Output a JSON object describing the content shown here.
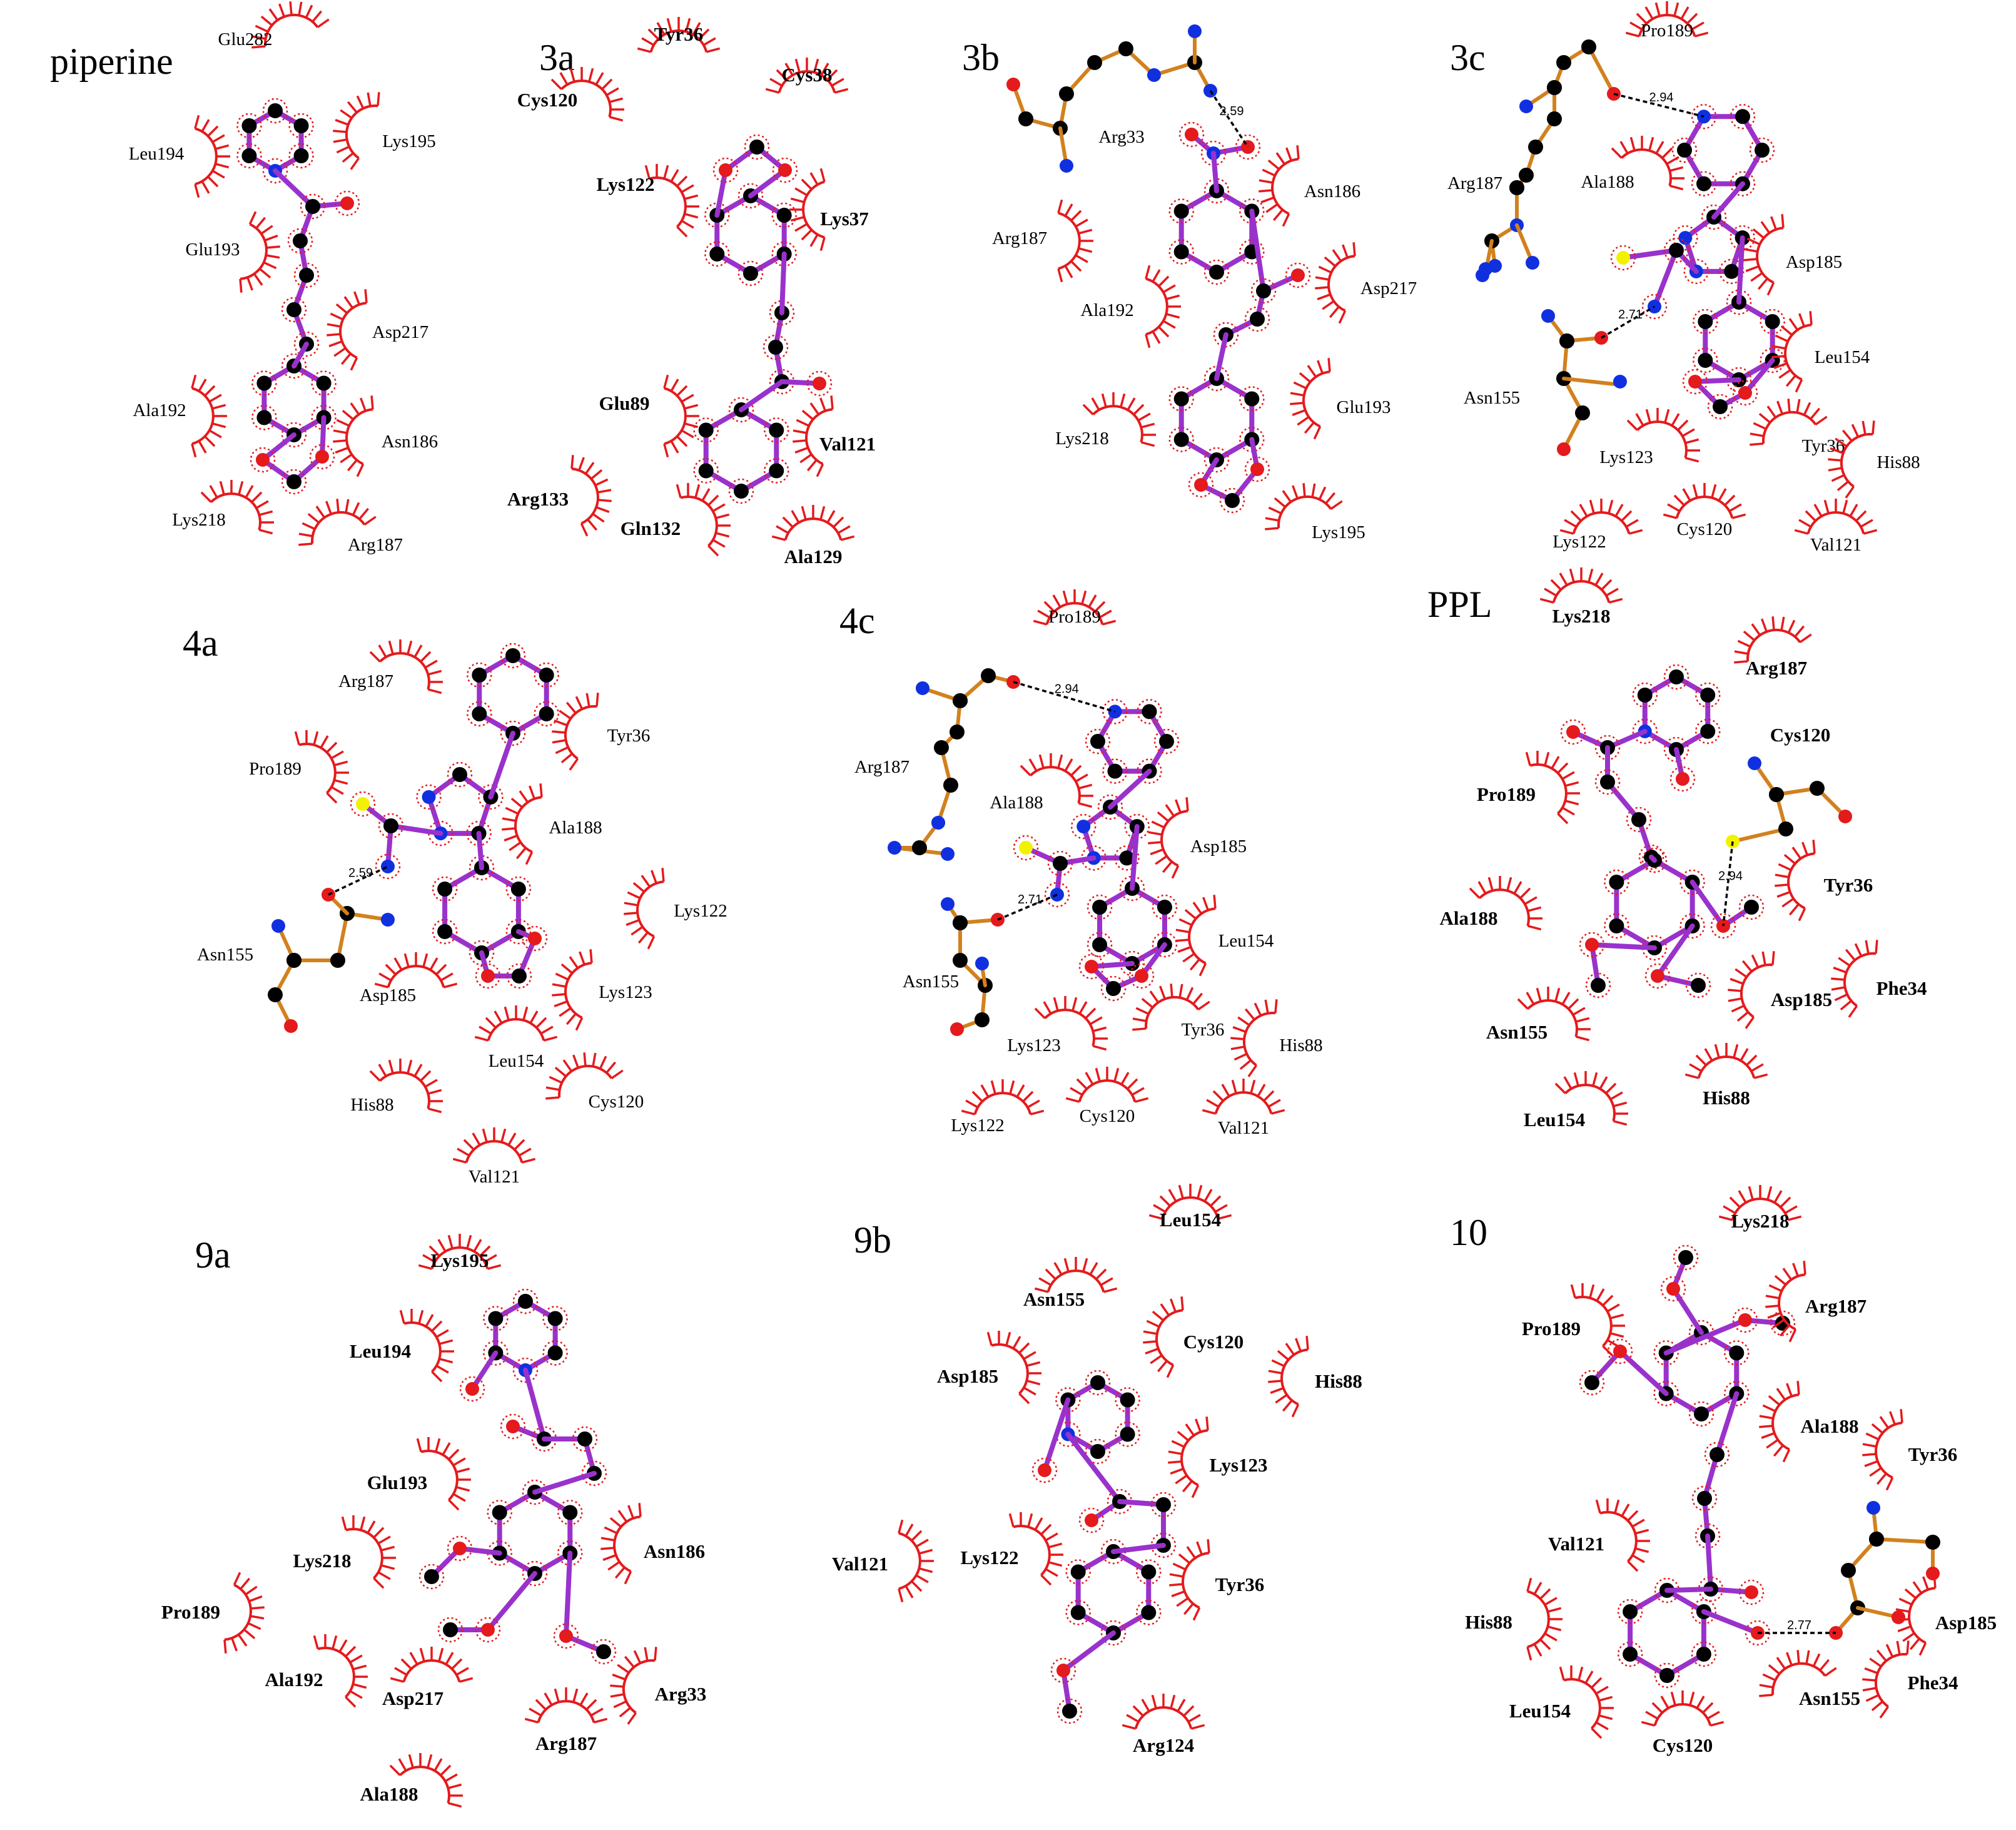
{
  "colors": {
    "residue": "#e41a1c",
    "ligand_bond": "#9932cc",
    "protein_bond": "#d2811e",
    "C": "#000000",
    "N": "#1030e0",
    "O": "#e41a1c",
    "S": "#f2f200"
  },
  "panels": [
    {
      "id": "piperine",
      "title": "piperine",
      "residues": [
        {
          "name": "Glu282",
          "bold": false
        },
        {
          "name": "Leu194",
          "bold": false
        },
        {
          "name": "Lys195",
          "bold": false
        },
        {
          "name": "Glu193",
          "bold": false
        },
        {
          "name": "Asp217",
          "bold": false
        },
        {
          "name": "Ala192",
          "bold": false
        },
        {
          "name": "Asn186",
          "bold": false
        },
        {
          "name": "Lys218",
          "bold": false
        },
        {
          "name": "Arg187",
          "bold": false
        }
      ],
      "hbonds": []
    },
    {
      "id": "3a",
      "title": "3a",
      "residues": [
        {
          "name": "Tyr36",
          "bold": true
        },
        {
          "name": "Cys120",
          "bold": true
        },
        {
          "name": "Cys38",
          "bold": true
        },
        {
          "name": "Lys122",
          "bold": true
        },
        {
          "name": "Lys37",
          "bold": true
        },
        {
          "name": "Glu89",
          "bold": true
        },
        {
          "name": "Val121",
          "bold": true
        },
        {
          "name": "Arg133",
          "bold": true
        },
        {
          "name": "Gln132",
          "bold": true
        },
        {
          "name": "Ala129",
          "bold": true
        }
      ],
      "hbonds": []
    },
    {
      "id": "3b",
      "title": "3b",
      "residues": [
        {
          "name": "Arg33",
          "bold": false
        },
        {
          "name": "Asn186",
          "bold": false
        },
        {
          "name": "Arg187",
          "bold": false
        },
        {
          "name": "Asp217",
          "bold": false
        },
        {
          "name": "Ala192",
          "bold": false
        },
        {
          "name": "Glu193",
          "bold": false
        },
        {
          "name": "Lys218",
          "bold": false
        },
        {
          "name": "Lys195",
          "bold": false
        }
      ],
      "hbonds": [
        {
          "distance": "2.59"
        }
      ]
    },
    {
      "id": "3c",
      "title": "3c",
      "residues": [
        {
          "name": "Pro189",
          "bold": false
        },
        {
          "name": "Arg187",
          "bold": false
        },
        {
          "name": "Ala188",
          "bold": false
        },
        {
          "name": "Asp185",
          "bold": false
        },
        {
          "name": "Leu154",
          "bold": false
        },
        {
          "name": "Asn155",
          "bold": false
        },
        {
          "name": "Lys123",
          "bold": false
        },
        {
          "name": "Tyr36",
          "bold": false
        },
        {
          "name": "His88",
          "bold": false
        },
        {
          "name": "Lys122",
          "bold": false
        },
        {
          "name": "Cys120",
          "bold": false
        },
        {
          "name": "Val121",
          "bold": false
        }
      ],
      "hbonds": [
        {
          "distance": "2.94"
        },
        {
          "distance": "2.71"
        }
      ]
    },
    {
      "id": "4a",
      "title": "4a",
      "residues": [
        {
          "name": "Arg187",
          "bold": false
        },
        {
          "name": "Tyr36",
          "bold": false
        },
        {
          "name": "Pro189",
          "bold": false
        },
        {
          "name": "Ala188",
          "bold": false
        },
        {
          "name": "Lys122",
          "bold": false
        },
        {
          "name": "Asn155",
          "bold": false
        },
        {
          "name": "Asp185",
          "bold": false
        },
        {
          "name": "Lys123",
          "bold": false
        },
        {
          "name": "Leu154",
          "bold": false
        },
        {
          "name": "His88",
          "bold": false
        },
        {
          "name": "Cys120",
          "bold": false
        },
        {
          "name": "Val121",
          "bold": false
        }
      ],
      "hbonds": [
        {
          "distance": "2.59"
        }
      ]
    },
    {
      "id": "4c",
      "title": "4c",
      "residues": [
        {
          "name": "Pro189",
          "bold": false
        },
        {
          "name": "Arg187",
          "bold": false
        },
        {
          "name": "Ala188",
          "bold": false
        },
        {
          "name": "Asp185",
          "bold": false
        },
        {
          "name": "Leu154",
          "bold": false
        },
        {
          "name": "Asn155",
          "bold": false
        },
        {
          "name": "Lys123",
          "bold": false
        },
        {
          "name": "Tyr36",
          "bold": false
        },
        {
          "name": "His88",
          "bold": false
        },
        {
          "name": "Lys122",
          "bold": false
        },
        {
          "name": "Cys120",
          "bold": false
        },
        {
          "name": "Val121",
          "bold": false
        }
      ],
      "hbonds": [
        {
          "distance": "2.94"
        },
        {
          "distance": "2.71"
        }
      ]
    },
    {
      "id": "PPL",
      "title": "PPL",
      "residues": [
        {
          "name": "Lys218",
          "bold": true
        },
        {
          "name": "Arg187",
          "bold": true
        },
        {
          "name": "Cys120",
          "bold": true
        },
        {
          "name": "Pro189",
          "bold": true
        },
        {
          "name": "Ala188",
          "bold": true
        },
        {
          "name": "Tyr36",
          "bold": true
        },
        {
          "name": "Asp185",
          "bold": true
        },
        {
          "name": "Phe34",
          "bold": true
        },
        {
          "name": "Asn155",
          "bold": true
        },
        {
          "name": "His88",
          "bold": true
        },
        {
          "name": "Leu154",
          "bold": true
        }
      ],
      "hbonds": [
        {
          "distance": "2.94"
        }
      ]
    },
    {
      "id": "9a",
      "title": "9a",
      "residues": [
        {
          "name": "Lys195",
          "bold": true
        },
        {
          "name": "Leu194",
          "bold": true
        },
        {
          "name": "Glu193",
          "bold": true
        },
        {
          "name": "Asn186",
          "bold": true
        },
        {
          "name": "Lys218",
          "bold": true
        },
        {
          "name": "Pro189",
          "bold": true
        },
        {
          "name": "Ala192",
          "bold": true
        },
        {
          "name": "Asp217",
          "bold": true
        },
        {
          "name": "Arg33",
          "bold": true
        },
        {
          "name": "Arg187",
          "bold": true
        },
        {
          "name": "Ala188",
          "bold": true
        }
      ],
      "hbonds": []
    },
    {
      "id": "9b",
      "title": "9b",
      "residues": [
        {
          "name": "Leu154",
          "bold": true
        },
        {
          "name": "Asn155",
          "bold": true
        },
        {
          "name": "Cys120",
          "bold": true
        },
        {
          "name": "His88",
          "bold": true
        },
        {
          "name": "Asp185",
          "bold": true
        },
        {
          "name": "Lys123",
          "bold": true
        },
        {
          "name": "Val121",
          "bold": true
        },
        {
          "name": "Lys122",
          "bold": true
        },
        {
          "name": "Tyr36",
          "bold": true
        },
        {
          "name": "Arg124",
          "bold": true
        }
      ],
      "hbonds": []
    },
    {
      "id": "10",
      "title": "10",
      "residues": [
        {
          "name": "Lys218",
          "bold": true
        },
        {
          "name": "Pro189",
          "bold": true
        },
        {
          "name": "Arg187",
          "bold": true
        },
        {
          "name": "Ala188",
          "bold": true
        },
        {
          "name": "Tyr36",
          "bold": true
        },
        {
          "name": "Val121",
          "bold": true
        },
        {
          "name": "His88",
          "bold": true
        },
        {
          "name": "Asp185",
          "bold": true
        },
        {
          "name": "Leu154",
          "bold": true
        },
        {
          "name": "Asn155",
          "bold": true
        },
        {
          "name": "Phe34",
          "bold": true
        },
        {
          "name": "Cys120",
          "bold": true
        }
      ],
      "hbonds": [
        {
          "distance": "2.77"
        }
      ]
    }
  ]
}
